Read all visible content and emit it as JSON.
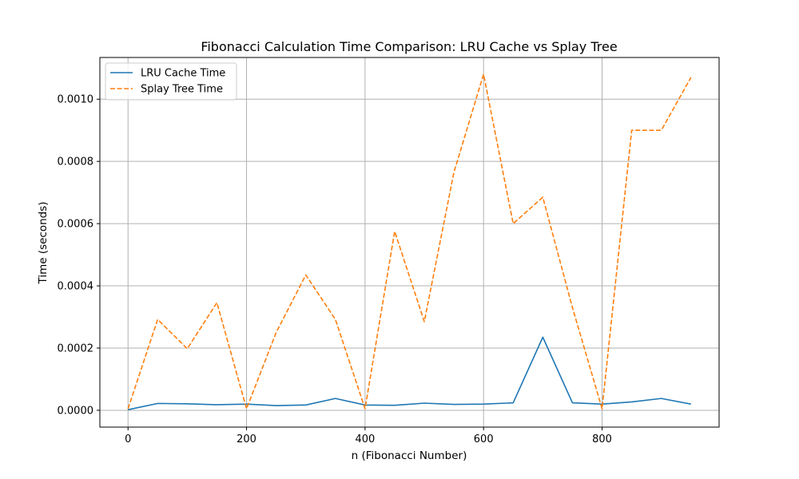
{
  "chart_data": {
    "type": "line",
    "title": "Fibonacci Calculation Time Comparison: LRU Cache vs Splay Tree",
    "xlabel": "n (Fibonacci Number)",
    "ylabel": "Time (seconds)",
    "xlim": [
      -47.5,
      997.5
    ],
    "ylim": [
      -5.4e-05,
      0.001134
    ],
    "xticks": [
      0,
      200,
      400,
      600,
      800
    ],
    "xtick_labels": [
      "0",
      "200",
      "400",
      "600",
      "800"
    ],
    "yticks": [
      0,
      0.0002,
      0.0004,
      0.0006,
      0.0008,
      0.001
    ],
    "ytick_labels": [
      "0.0000",
      "0.0002",
      "0.0004",
      "0.0006",
      "0.0008",
      "0.0010"
    ],
    "grid": true,
    "legend_position": "top-left",
    "x": [
      0,
      50,
      100,
      150,
      200,
      250,
      300,
      350,
      400,
      450,
      500,
      550,
      600,
      650,
      700,
      750,
      800,
      850,
      900,
      950
    ],
    "series": [
      {
        "name": "LRU Cache Time",
        "color": "#1f77b4",
        "style": "solid",
        "values": [
          2e-06,
          2.2e-05,
          2.1e-05,
          1.8e-05,
          2e-05,
          1.5e-05,
          1.7e-05,
          3.8e-05,
          1.7e-05,
          1.6e-05,
          2.3e-05,
          1.9e-05,
          2e-05,
          2.4e-05,
          0.000235,
          2.4e-05,
          2e-05,
          2.7e-05,
          3.8e-05,
          2e-05
        ]
      },
      {
        "name": "Splay Tree Time",
        "color": "#ff7f0e",
        "style": "dashed",
        "values": [
          5e-06,
          0.000292,
          0.000198,
          0.000346,
          5e-06,
          0.00025,
          0.000435,
          0.000292,
          5e-06,
          0.000575,
          0.000285,
          0.000765,
          0.00108,
          0.0006,
          0.000685,
          0.00033,
          5e-06,
          0.0009,
          0.0009,
          0.00107
        ]
      }
    ]
  }
}
